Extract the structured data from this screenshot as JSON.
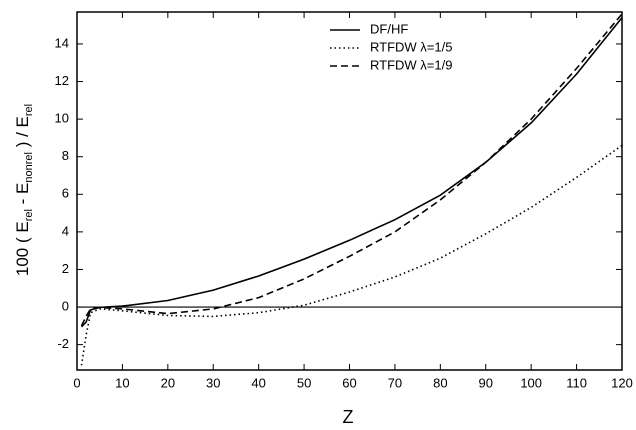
{
  "chart_data": {
    "type": "line",
    "xlabel": "Z",
    "ylabel": [
      "100 ( E",
      "rel",
      " - E",
      "nonrel",
      " ) / E",
      "rel"
    ],
    "x": [
      1,
      2,
      3,
      5,
      10,
      20,
      30,
      40,
      50,
      60,
      70,
      80,
      90,
      100,
      110,
      120
    ],
    "series": [
      {
        "name": "DF/HF",
        "color": "#000000",
        "style": "solid",
        "values": [
          -1.05,
          -0.8,
          -0.15,
          -0.02,
          0.05,
          0.35,
          0.9,
          1.65,
          2.55,
          3.55,
          4.65,
          5.95,
          7.7,
          9.8,
          12.4,
          15.4
        ]
      },
      {
        "name": "RTFDW λ=1/5",
        "color": "#000000",
        "style": "dotted",
        "values": [
          -3.1,
          -1.5,
          -0.3,
          -0.1,
          -0.2,
          -0.45,
          -0.5,
          -0.3,
          0.1,
          0.8,
          1.6,
          2.6,
          3.9,
          5.3,
          6.9,
          8.6
        ]
      },
      {
        "name": "RTFDW λ=1/9",
        "color": "#000000",
        "style": "dashed",
        "values": [
          -1.0,
          -0.5,
          -0.1,
          -0.02,
          -0.1,
          -0.35,
          -0.1,
          0.5,
          1.5,
          2.7,
          4.0,
          5.7,
          7.7,
          10.0,
          12.7,
          15.6
        ]
      }
    ],
    "reference_line": 0,
    "xlim": [
      0,
      120
    ],
    "ylim": [
      -3.35,
      15.7
    ],
    "xticks": [
      0,
      10,
      20,
      30,
      40,
      50,
      60,
      70,
      80,
      90,
      100,
      110,
      120
    ],
    "yticks": [
      -2,
      0,
      2,
      4,
      6,
      8,
      10,
      12,
      14
    ],
    "legend": "top-center"
  }
}
